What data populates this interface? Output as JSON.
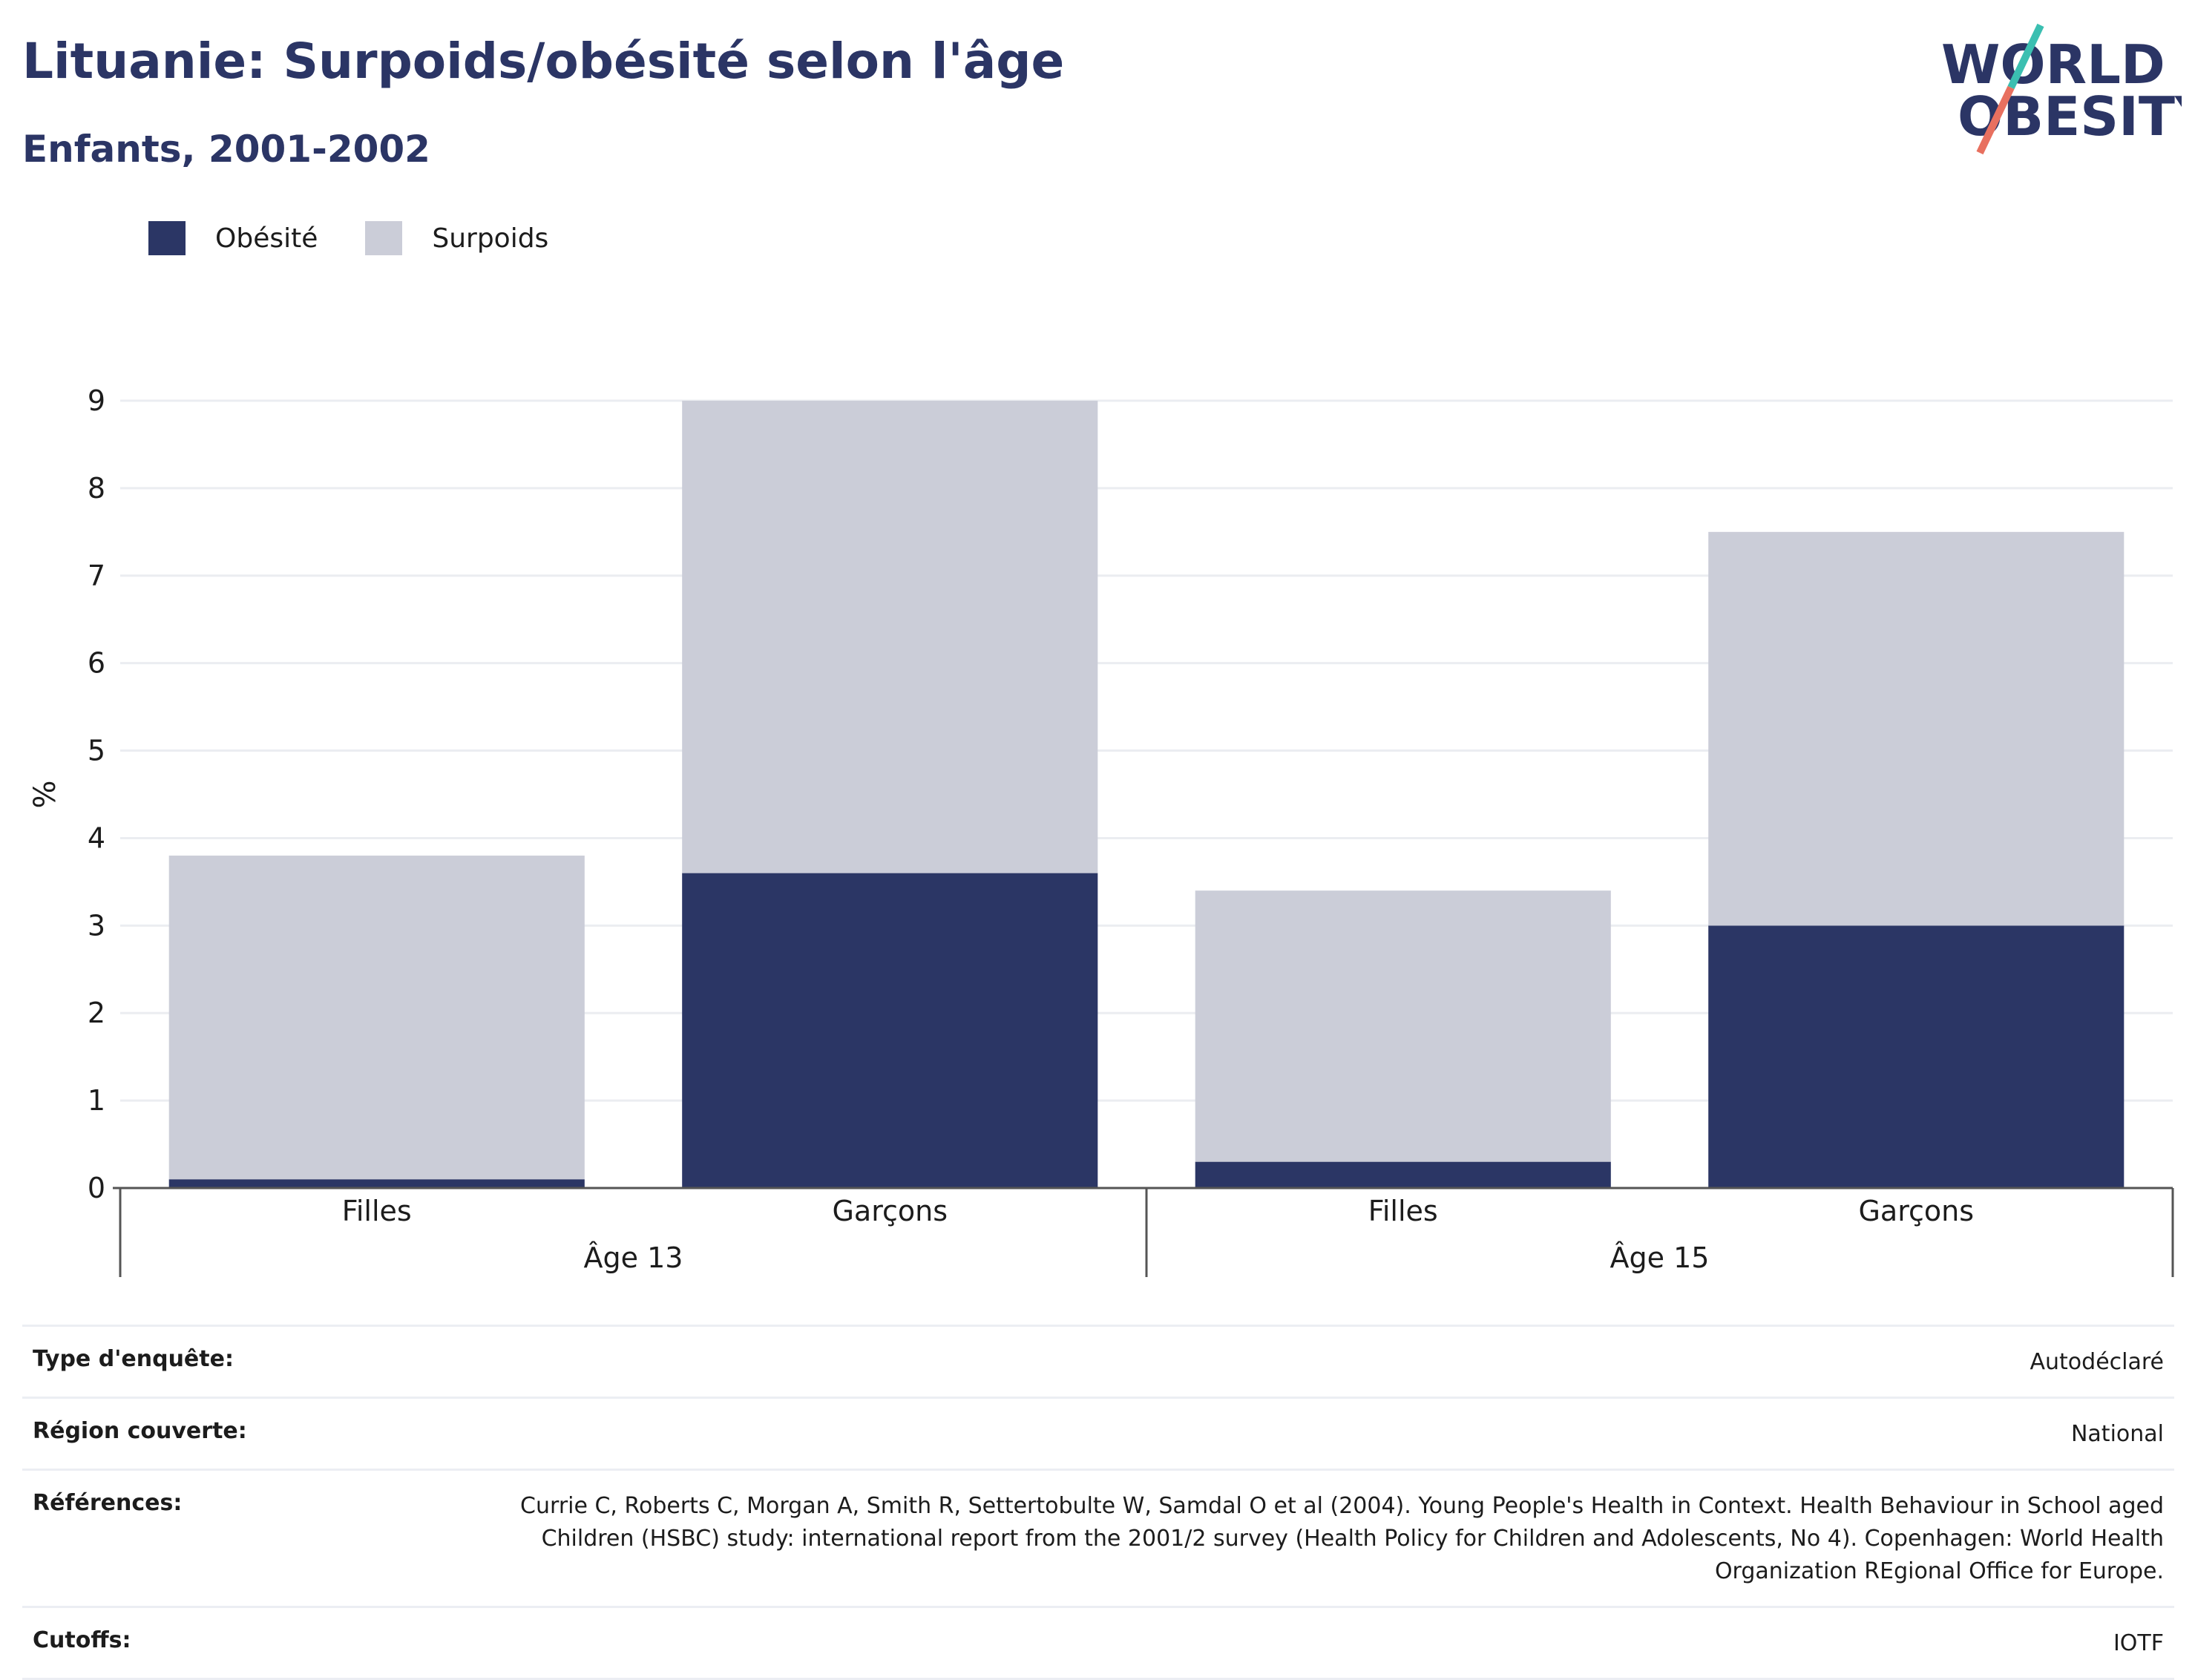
{
  "header": {
    "title": "Lituanie: Surpoids/obésité selon l'âge",
    "subtitle": "Enfants, 2001-2002"
  },
  "logo": {
    "line1": "WORLD",
    "line2": "OBESITY"
  },
  "colors": {
    "obesite": "#2b3665",
    "surpoids": "#cbcdd8",
    "brand_teal": "#3bbfb1",
    "brand_coral": "#e8705f"
  },
  "chart_data": {
    "type": "bar",
    "stacked": true,
    "groups": [
      {
        "label": "Âge 13",
        "categories": [
          "Filles",
          "Garçons"
        ]
      },
      {
        "label": "Âge 15",
        "categories": [
          "Filles",
          "Garçons"
        ]
      }
    ],
    "categories": [
      "Filles",
      "Garçons",
      "Filles",
      "Garçons"
    ],
    "series": [
      {
        "name": "Obésité",
        "values": [
          0.1,
          3.6,
          0.3,
          3.0
        ]
      },
      {
        "name": "Surpoids",
        "values": [
          3.7,
          5.4,
          3.1,
          4.5
        ]
      }
    ],
    "ylabel": "%",
    "ylim": [
      0,
      9
    ],
    "yticks": [
      "0",
      "1",
      "2",
      "3",
      "4",
      "5",
      "6",
      "7",
      "8",
      "9"
    ],
    "grid": true,
    "legend_position": "top-left"
  },
  "info": {
    "rows": [
      {
        "label": "Type d'enquête:",
        "value": "Autodéclaré"
      },
      {
        "label": "Région couverte:",
        "value": "National"
      },
      {
        "label": "Références:",
        "value": "Currie C, Roberts C, Morgan A, Smith R, Settertobulte W, Samdal O et al (2004). Young People's Health in Context. Health Behaviour in School aged Children (HSBC) study: international report from the 2001/2 survey (Health Policy for Children and Adolescents, No 4). Copenhagen: World Health Organization REgional Office for Europe."
      },
      {
        "label": "Cutoffs:",
        "value": "IOTF"
      }
    ]
  }
}
